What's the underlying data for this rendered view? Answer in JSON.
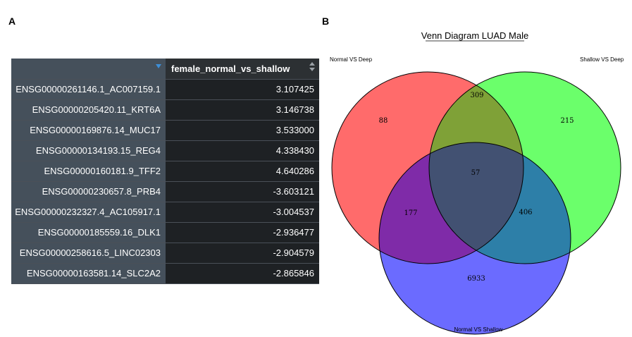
{
  "panel_a": {
    "letter": "A",
    "table": {
      "headers": [
        "",
        "female_normal_vs_shallow"
      ],
      "rows": [
        {
          "gene": "ENSG00000261146.1_AC007159.1",
          "value": "3.107425"
        },
        {
          "gene": "ENSG00000205420.11_KRT6A",
          "value": "3.146738"
        },
        {
          "gene": "ENSG00000169876.14_MUC17",
          "value": "3.533000"
        },
        {
          "gene": "ENSG00000134193.15_REG4",
          "value": "4.338430"
        },
        {
          "gene": "ENSG00000160181.9_TFF2",
          "value": "4.640286"
        },
        {
          "gene": "ENSG00000230657.8_PRB4",
          "value": "-3.603121"
        },
        {
          "gene": "ENSG00000232327.4_AC105917.1",
          "value": "-3.004537"
        },
        {
          "gene": "ENSG00000185559.16_DLK1",
          "value": "-2.936477"
        },
        {
          "gene": "ENSG00000258616.5_LINC02303",
          "value": "-2.904579"
        },
        {
          "gene": "ENSG00000163581.14_SLC2A2",
          "value": "-2.865846"
        }
      ]
    }
  },
  "panel_b": {
    "letter": "B",
    "title": "Venn Diagram LUAD Male",
    "sets": [
      {
        "label": "Normal VS Deep",
        "color": "#ff6b6b"
      },
      {
        "label": "Shallow VS Deep",
        "color": "#6bff6b"
      },
      {
        "label": "Normal VS Shallow",
        "color": "#6b6bff"
      }
    ],
    "regions": {
      "deep_only": "88",
      "normal_deep_shallow_deep": "309",
      "shallow_deep_only": "215",
      "all_three": "57",
      "normal_deep_normal_shallow": "177",
      "shallow_deep_normal_shallow": "406",
      "normal_shallow_only": "6933"
    }
  }
}
